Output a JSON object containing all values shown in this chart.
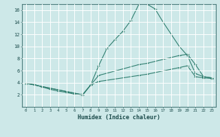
{
  "xlabel": "Humidex (Indice chaleur)",
  "background_color": "#cde8e8",
  "grid_color": "#ffffff",
  "line_color": "#2e7d6e",
  "xlim": [
    -0.5,
    23.5
  ],
  "ylim": [
    0,
    17
  ],
  "xticks": [
    0,
    1,
    2,
    3,
    4,
    5,
    6,
    7,
    8,
    9,
    10,
    11,
    12,
    13,
    14,
    15,
    16,
    17,
    18,
    19,
    20,
    21,
    22,
    23
  ],
  "yticks": [
    2,
    4,
    6,
    8,
    10,
    12,
    14,
    16
  ],
  "line1_x": [
    0,
    1,
    2,
    3,
    4,
    5,
    6,
    7,
    8,
    9,
    10,
    11,
    12,
    13,
    14,
    15,
    16,
    17,
    18,
    19,
    20,
    21,
    22,
    23
  ],
  "line1_y": [
    3.9,
    3.7,
    3.3,
    2.9,
    2.6,
    2.4,
    2.1,
    1.9,
    3.6,
    6.8,
    9.6,
    11.1,
    12.5,
    14.3,
    17.0,
    17.0,
    16.2,
    14.0,
    12.0,
    10.0,
    8.5,
    5.5,
    5.0,
    4.8
  ],
  "line2_x": [
    0,
    7,
    8,
    9,
    14,
    15,
    19,
    20,
    21,
    22,
    23
  ],
  "line2_y": [
    3.9,
    2.0,
    3.6,
    5.2,
    7.0,
    7.2,
    8.5,
    8.7,
    7.0,
    5.0,
    4.8
  ],
  "line3_x": [
    0,
    7,
    8,
    9,
    14,
    15,
    19,
    20,
    21,
    22,
    23
  ],
  "line3_y": [
    3.9,
    2.0,
    3.6,
    4.2,
    5.2,
    5.4,
    6.5,
    6.8,
    5.0,
    4.8,
    4.7
  ]
}
